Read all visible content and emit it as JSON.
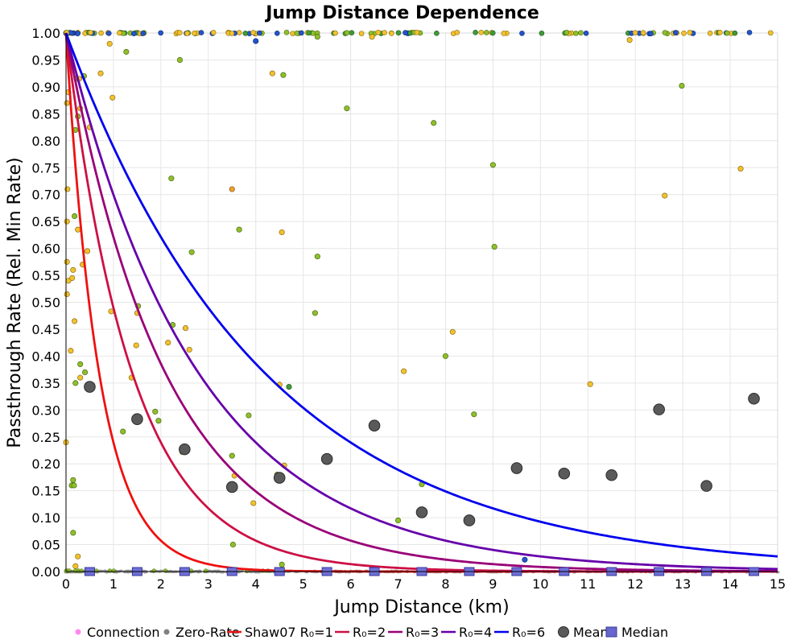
{
  "chart_data": {
    "type": "scatter",
    "title": "Jump Distance Dependence",
    "xlabel": "Jump Distance (km)",
    "ylabel": "Passthrough Rate (Rel. Min Rate)",
    "xlim": [
      0,
      15
    ],
    "ylim": [
      0,
      1
    ],
    "x_ticks": [
      "0",
      "1",
      "2",
      "3",
      "4",
      "5",
      "6",
      "7",
      "8",
      "9",
      "10",
      "11",
      "12",
      "13",
      "14",
      "15"
    ],
    "y_ticks": [
      "0.00",
      "0.05",
      "0.10",
      "0.15",
      "0.20",
      "0.25",
      "0.30",
      "0.35",
      "0.40",
      "0.45",
      "0.50",
      "0.55",
      "0.60",
      "0.65",
      "0.70",
      "0.75",
      "0.80",
      "0.85",
      "0.90",
      "0.95",
      "1.00"
    ],
    "grid": true,
    "legend_position": "bottom",
    "legend": [
      {
        "label": "Connection",
        "kind": "dot",
        "color": "#ff88ee"
      },
      {
        "label": "Zero-Rate",
        "kind": "dot",
        "color": "#808080"
      },
      {
        "label": "Shaw07 R₀=1",
        "kind": "line",
        "color": "#ee1111"
      },
      {
        "label": "R₀=2",
        "kind": "line",
        "color": "#cc1144"
      },
      {
        "label": "R₀=3",
        "kind": "line",
        "color": "#990077"
      },
      {
        "label": "R₀=4",
        "kind": "line",
        "color": "#6600aa"
      },
      {
        "label": "R₀=6",
        "kind": "line",
        "color": "#0000ee"
      },
      {
        "label": "Mean",
        "kind": "bigdot",
        "color": "#555555"
      },
      {
        "label": "Median",
        "kind": "square",
        "color": "#6666cc"
      }
    ],
    "curves": [
      {
        "name": "Shaw07 R₀=1",
        "r0": 1,
        "color": "#ee1111"
      },
      {
        "name": "R₀=2",
        "r0": 2,
        "color": "#cc1144"
      },
      {
        "name": "R₀=3",
        "r0": 3,
        "color": "#990077"
      },
      {
        "name": "R₀=4",
        "r0": 4,
        "color": "#6600aa"
      },
      {
        "name": "R₀=6",
        "r0": 6,
        "color": "#0000ee"
      }
    ],
    "mean": {
      "x": [
        0.5,
        1.5,
        2.5,
        3.5,
        4.5,
        5.5,
        6.5,
        7.5,
        8.5,
        9.5,
        10.5,
        11.5,
        12.5,
        13.5,
        14.5
      ],
      "y": [
        0.343,
        0.283,
        0.227,
        0.157,
        0.174,
        0.209,
        0.271,
        0.11,
        0.095,
        0.192,
        0.182,
        0.179,
        0.301,
        0.159,
        0.321
      ]
    },
    "median": {
      "x": [
        0.5,
        1.5,
        2.5,
        3.5,
        4.5,
        5.5,
        6.5,
        7.5,
        8.5,
        9.5,
        10.5,
        11.5,
        12.5,
        13.5,
        14.5
      ],
      "y": [
        0,
        0,
        0,
        0,
        0,
        0,
        0,
        0,
        0,
        0,
        0,
        0,
        0,
        0,
        0
      ]
    },
    "connections": [
      {
        "x": 0.02,
        "y": 0.87,
        "c": "yellow"
      },
      {
        "x": 0.05,
        "y": 0.89,
        "c": "yellow"
      },
      {
        "x": 0.03,
        "y": 0.71,
        "c": "yellow"
      },
      {
        "x": 0.02,
        "y": 0.65,
        "c": "yellow"
      },
      {
        "x": 0.02,
        "y": 0.575,
        "c": "yellow"
      },
      {
        "x": 0.05,
        "y": 0.54,
        "c": "yellow"
      },
      {
        "x": 0.02,
        "y": 0.515,
        "c": "yellow"
      },
      {
        "x": 0.1,
        "y": 0.41,
        "c": "yellow"
      },
      {
        "x": 0.0,
        "y": 0.24,
        "c": "yellow"
      },
      {
        "x": 0.15,
        "y": 0.56,
        "c": "yellow"
      },
      {
        "x": 0.13,
        "y": 0.545,
        "c": "yellow"
      },
      {
        "x": 0.18,
        "y": 0.465,
        "c": "yellow"
      },
      {
        "x": 0.25,
        "y": 0.635,
        "c": "yellow"
      },
      {
        "x": 0.18,
        "y": 0.66,
        "c": "green"
      },
      {
        "x": 0.2,
        "y": 0.82,
        "c": "green"
      },
      {
        "x": 0.22,
        "y": 0.915,
        "c": "green"
      },
      {
        "x": 0.25,
        "y": 0.845,
        "c": "green"
      },
      {
        "x": 0.28,
        "y": 0.915,
        "c": "yellow"
      },
      {
        "x": 0.3,
        "y": 0.86,
        "c": "yellow"
      },
      {
        "x": 0.35,
        "y": 0.57,
        "c": "yellow"
      },
      {
        "x": 0.45,
        "y": 0.595,
        "c": "yellow"
      },
      {
        "x": 0.38,
        "y": 0.92,
        "c": "green"
      },
      {
        "x": 0.5,
        "y": 0.825,
        "c": "yellow"
      },
      {
        "x": 0.3,
        "y": 0.385,
        "c": "green"
      },
      {
        "x": 0.4,
        "y": 0.37,
        "c": "green"
      },
      {
        "x": 0.3,
        "y": 0.36,
        "c": "yellow"
      },
      {
        "x": 0.2,
        "y": 0.35,
        "c": "green"
      },
      {
        "x": 0.15,
        "y": 0.17,
        "c": "green"
      },
      {
        "x": 0.12,
        "y": 0.16,
        "c": "green"
      },
      {
        "x": 0.17,
        "y": 0.16,
        "c": "green"
      },
      {
        "x": 0.15,
        "y": 0.072,
        "c": "green"
      },
      {
        "x": 0.25,
        "y": 0.028,
        "c": "yellow"
      },
      {
        "x": 0.2,
        "y": 0.01,
        "c": "yellow"
      },
      {
        "x": 0.73,
        "y": 0.925,
        "c": "yellow"
      },
      {
        "x": 0.92,
        "y": 0.98,
        "c": "yellow"
      },
      {
        "x": 0.98,
        "y": 0.88,
        "c": "yellow"
      },
      {
        "x": 0.95,
        "y": 0.483,
        "c": "yellow"
      },
      {
        "x": 1.27,
        "y": 0.965,
        "c": "green"
      },
      {
        "x": 1.2,
        "y": 0.26,
        "c": "green"
      },
      {
        "x": 1.38,
        "y": 0.36,
        "c": "yellow"
      },
      {
        "x": 1.48,
        "y": 0.42,
        "c": "yellow"
      },
      {
        "x": 1.5,
        "y": 0.48,
        "c": "yellow"
      },
      {
        "x": 1.52,
        "y": 0.493,
        "c": "green"
      },
      {
        "x": 1.88,
        "y": 0.297,
        "c": "green"
      },
      {
        "x": 1.95,
        "y": 0.28,
        "c": "green"
      },
      {
        "x": 2.15,
        "y": 0.425,
        "c": "yellow"
      },
      {
        "x": 2.22,
        "y": 0.73,
        "c": "green"
      },
      {
        "x": 2.25,
        "y": 0.458,
        "c": "green"
      },
      {
        "x": 2.4,
        "y": 0.95,
        "c": "green"
      },
      {
        "x": 2.45,
        "y": 0.222,
        "c": "yellow"
      },
      {
        "x": 2.52,
        "y": 0.452,
        "c": "yellow"
      },
      {
        "x": 2.6,
        "y": 0.412,
        "c": "yellow"
      },
      {
        "x": 2.65,
        "y": 0.593,
        "c": "green"
      },
      {
        "x": 3.5,
        "y": 0.71,
        "c": "orange"
      },
      {
        "x": 3.5,
        "y": 0.215,
        "c": "green"
      },
      {
        "x": 3.55,
        "y": 0.178,
        "c": "yellow"
      },
      {
        "x": 3.65,
        "y": 0.635,
        "c": "green"
      },
      {
        "x": 3.52,
        "y": 0.05,
        "c": "green"
      },
      {
        "x": 3.85,
        "y": 0.29,
        "c": "green"
      },
      {
        "x": 3.95,
        "y": 0.127,
        "c": "yellow"
      },
      {
        "x": 4.0,
        "y": 0.985,
        "c": "blue"
      },
      {
        "x": 4.35,
        "y": 0.925,
        "c": "yellow"
      },
      {
        "x": 4.5,
        "y": 0.347,
        "c": "yellow"
      },
      {
        "x": 4.45,
        "y": 0.18,
        "c": "green"
      },
      {
        "x": 4.55,
        "y": 0.63,
        "c": "yellow"
      },
      {
        "x": 4.58,
        "y": 0.922,
        "c": "green"
      },
      {
        "x": 4.6,
        "y": 0.197,
        "c": "yellow"
      },
      {
        "x": 4.55,
        "y": 0.013,
        "c": "green"
      },
      {
        "x": 4.7,
        "y": 0.343,
        "c": "darkgreen"
      },
      {
        "x": 5.25,
        "y": 0.48,
        "c": "green"
      },
      {
        "x": 5.3,
        "y": 0.585,
        "c": "green"
      },
      {
        "x": 5.3,
        "y": 0.993,
        "c": "green"
      },
      {
        "x": 5.92,
        "y": 0.86,
        "c": "green"
      },
      {
        "x": 6.45,
        "y": 0.993,
        "c": "yellow"
      },
      {
        "x": 7.0,
        "y": 0.095,
        "c": "green"
      },
      {
        "x": 7.12,
        "y": 0.372,
        "c": "yellow"
      },
      {
        "x": 7.5,
        "y": 0.162,
        "c": "green"
      },
      {
        "x": 7.75,
        "y": 0.833,
        "c": "green"
      },
      {
        "x": 8.0,
        "y": 0.4,
        "c": "green"
      },
      {
        "x": 8.15,
        "y": 0.445,
        "c": "yellow"
      },
      {
        "x": 8.6,
        "y": 0.292,
        "c": "green"
      },
      {
        "x": 9.0,
        "y": 0.755,
        "c": "green"
      },
      {
        "x": 9.03,
        "y": 0.603,
        "c": "green"
      },
      {
        "x": 9.67,
        "y": 0.022,
        "c": "blue"
      },
      {
        "x": 11.05,
        "y": 0.348,
        "c": "yellow"
      },
      {
        "x": 11.88,
        "y": 0.987,
        "c": "yellow"
      },
      {
        "x": 12.62,
        "y": 0.698,
        "c": "yellow"
      },
      {
        "x": 12.98,
        "y": 0.902,
        "c": "green"
      },
      {
        "x": 14.22,
        "y": 0.748,
        "c": "yellow"
      }
    ]
  }
}
